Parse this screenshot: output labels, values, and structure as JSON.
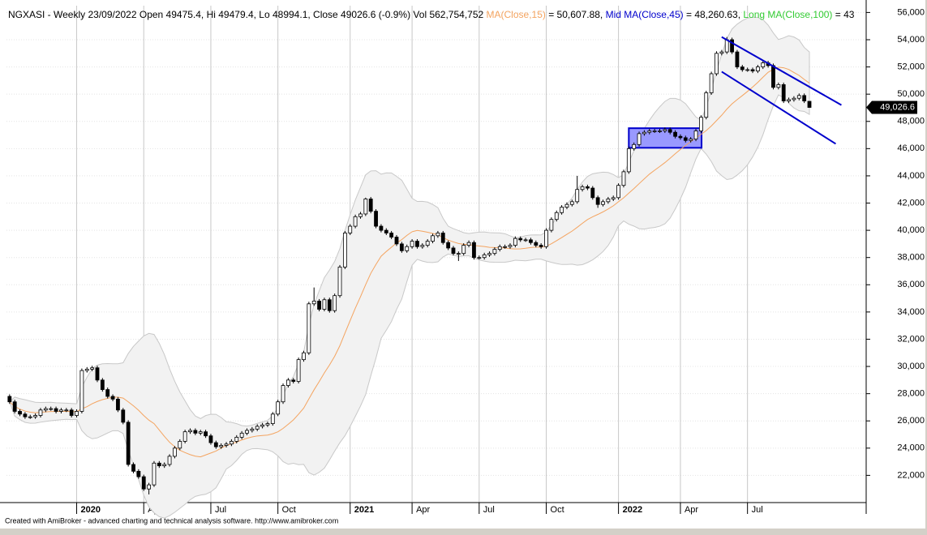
{
  "chart_data": {
    "type": "candlestick",
    "header": [
      {
        "text": "NGXASI - Weekly 23/09/2022 Open 49475.4, Hi 49479.4, Lo 48994.1, Close 49026.6 (-0.9%) Vol 562,754,752 ",
        "color": "#000000"
      },
      {
        "text": "MA(Close,15)",
        "color": "#f4a460"
      },
      {
        "text": " = 50,607.88, ",
        "color": "#000000"
      },
      {
        "text": "Mid MA(Close,45)",
        "color": "#0000cc"
      },
      {
        "text": " = 48,260.63, ",
        "color": "#000000"
      },
      {
        "text": "Long MA(Close,100)",
        "color": "#33cc33"
      },
      {
        "text": " = 43",
        "color": "#000000"
      }
    ],
    "footer": "Created with AmiBroker - advanced charting and technical analysis software. http://www.amibroker.com",
    "last_label": "49,026.6",
    "ma": {
      "period": 15,
      "color": "#f4a460",
      "band_width": 2,
      "band_fill": "#f2f2f2",
      "band_stroke": "#c8c8c8"
    },
    "up_color": "#ffffff",
    "down_color": "#000000",
    "grid": true,
    "xlim": [
      -0.6,
      166
    ],
    "xticks": [
      {
        "value": 13,
        "label": "2020"
      },
      {
        "value": 26,
        "label": "Apr"
      },
      {
        "value": 39,
        "label": "Jul"
      },
      {
        "value": 52,
        "label": "Oct"
      },
      {
        "value": 66,
        "label": "2021"
      },
      {
        "value": 78,
        "label": "Apr"
      },
      {
        "value": 91,
        "label": "Jul"
      },
      {
        "value": 104,
        "label": "Oct"
      },
      {
        "value": 118,
        "label": "2022"
      },
      {
        "value": 130,
        "label": "Apr"
      },
      {
        "value": 143,
        "label": "Jul"
      }
    ],
    "ylim": [
      20000,
      56500
    ],
    "yticks": [
      {
        "value": 22000,
        "label": "22,000"
      },
      {
        "value": 24000,
        "label": "24,000"
      },
      {
        "value": 26000,
        "label": "26,000"
      },
      {
        "value": 28000,
        "label": "28,000"
      },
      {
        "value": 30000,
        "label": "30,000"
      },
      {
        "value": 32000,
        "label": "32,000"
      },
      {
        "value": 34000,
        "label": "34,000"
      },
      {
        "value": 36000,
        "label": "36,000"
      },
      {
        "value": 38000,
        "label": "38,000"
      },
      {
        "value": 40000,
        "label": "40,000"
      },
      {
        "value": 42000,
        "label": "42,000"
      },
      {
        "value": 44000,
        "label": "44,000"
      },
      {
        "value": 46000,
        "label": "46,000"
      },
      {
        "value": 48000,
        "label": "48,000"
      },
      {
        "value": 50000,
        "label": "50,000"
      },
      {
        "value": 52000,
        "label": "52,000"
      },
      {
        "value": 54000,
        "label": "54,000"
      },
      {
        "value": 56000,
        "label": "56,000"
      }
    ],
    "channels": [
      {
        "x": [
          138,
          161.2
        ],
        "y": [
          54200,
          49200
        ],
        "color": "#0000cc"
      },
      {
        "x": [
          138,
          160.1
        ],
        "y": [
          51650,
          46350
        ],
        "color": "#0000cc"
      }
    ],
    "box": {
      "x": [
        120,
        134.1
      ],
      "y": [
        46060,
        47500
      ],
      "fill": "#9999ff",
      "stroke": "#0000cc"
    },
    "open": [
      27800,
      27400,
      26700,
      26500,
      26300,
      26300,
      26400,
      26800,
      26900,
      26900,
      26700,
      26800,
      26800,
      26400,
      26700,
      29700,
      29800,
      29900,
      29000,
      28300,
      27800,
      27600,
      26800,
      25900,
      22800,
      22300,
      21900,
      21000,
      21300,
      22900,
      22700,
      22800,
      23400,
      24000,
      24500,
      25200,
      25300,
      25100,
      25200,
      24900,
      24400,
      24100,
      24200,
      24300,
      24500,
      24800,
      25100,
      25300,
      25400,
      25600,
      25700,
      25800,
      26500,
      27400,
      28600,
      29000,
      28900,
      30500,
      31000,
      34600,
      34800,
      34200,
      34900,
      34100,
      35200,
      37300,
      39800,
      40300,
      41000,
      41200,
      42300,
      41400,
      40300,
      40000,
      39800,
      39500,
      39000,
      38500,
      38800,
      39200,
      38800,
      38900,
      39200,
      39600,
      39800,
      39100,
      38700,
      38300,
      38300,
      38900,
      39100,
      38000,
      38000,
      38200,
      38300,
      38600,
      38800,
      38800,
      38900,
      39400,
      39300,
      39300,
      39100,
      38900,
      38800,
      40000,
      40800,
      41300,
      41700,
      41900,
      42100,
      43000,
      43200,
      43100,
      42400,
      41900,
      42100,
      42300,
      42400,
      43300,
      44300,
      46000,
      46300,
      47100,
      47200,
      47300,
      47300,
      47300,
      47400,
      47200,
      46900,
      46800,
      46600,
      46700,
      47300,
      48300,
      50100,
      51500,
      53000,
      53100,
      54000,
      53100,
      52000,
      51800,
      51800,
      51700,
      52000,
      52300,
      52100,
      50500,
      50700,
      49500,
      49600,
      49700,
      49900,
      49475.4
    ],
    "high": [
      27950,
      27550,
      26850,
      26650,
      26450,
      26550,
      26950,
      27050,
      27050,
      27050,
      26950,
      26950,
      26950,
      26850,
      29850,
      29950,
      30050,
      30050,
      29150,
      28450,
      27950,
      27750,
      26950,
      26050,
      22950,
      22450,
      22050,
      21450,
      23050,
      23050,
      22950,
      23550,
      24150,
      24650,
      25350,
      25450,
      25450,
      25350,
      25350,
      25050,
      24550,
      24350,
      24450,
      24650,
      24950,
      25250,
      25450,
      25550,
      25750,
      25850,
      25950,
      26650,
      27550,
      28750,
      29150,
      29150,
      30650,
      31150,
      34750,
      35800,
      34950,
      35050,
      35050,
      35350,
      37450,
      39950,
      40450,
      41150,
      41350,
      42400,
      42450,
      41550,
      40450,
      40150,
      39950,
      39650,
      39150,
      38950,
      39350,
      39350,
      39050,
      39350,
      39750,
      39950,
      39950,
      39250,
      38850,
      38450,
      39050,
      39250,
      39250,
      38150,
      38350,
      38450,
      38750,
      38950,
      38950,
      39050,
      39550,
      39550,
      39450,
      39450,
      39250,
      39050,
      40150,
      40950,
      41450,
      41850,
      42050,
      42250,
      44000,
      43350,
      43350,
      43250,
      42550,
      42250,
      42450,
      42550,
      43450,
      44450,
      46150,
      46450,
      47250,
      47350,
      47450,
      47450,
      47450,
      47550,
      47550,
      47350,
      47050,
      46950,
      46850,
      47450,
      48450,
      50250,
      51650,
      53150,
      53250,
      54200,
      54150,
      53250,
      52150,
      51950,
      51950,
      52150,
      52450,
      52450,
      52250,
      50850,
      50850,
      49750,
      49850,
      50050,
      50050,
      49479.4
    ],
    "low": [
      27250,
      26550,
      26350,
      26150,
      26150,
      26150,
      26250,
      26650,
      26750,
      26550,
      26550,
      26650,
      26250,
      26250,
      26550,
      29550,
      29650,
      28850,
      28150,
      27650,
      27450,
      26650,
      25750,
      22650,
      22150,
      21750,
      20850,
      20600,
      21150,
      22550,
      22550,
      22650,
      23250,
      23850,
      24350,
      25050,
      24950,
      24950,
      24750,
      24250,
      23950,
      23950,
      24050,
      24150,
      24350,
      24650,
      24950,
      25150,
      25250,
      25450,
      25550,
      25650,
      26350,
      27250,
      28450,
      28750,
      28750,
      30350,
      30850,
      34450,
      34050,
      34050,
      33950,
      33950,
      35050,
      37150,
      39650,
      40150,
      40850,
      41050,
      41250,
      40150,
      39850,
      39650,
      39350,
      38850,
      38350,
      38350,
      38650,
      38650,
      38650,
      38750,
      39050,
      39450,
      38950,
      38550,
      38150,
      37750,
      38150,
      38750,
      37850,
      37850,
      37850,
      38050,
      38150,
      38450,
      38650,
      38650,
      38750,
      39150,
      39150,
      38950,
      38750,
      38650,
      38650,
      39850,
      40650,
      41150,
      41550,
      41750,
      41950,
      42850,
      42950,
      42250,
      41650,
      41750,
      41950,
      42150,
      42250,
      43150,
      44150,
      45850,
      46150,
      46950,
      47050,
      47150,
      47150,
      47150,
      47050,
      46750,
      46650,
      46450,
      46450,
      46550,
      47150,
      48150,
      49950,
      51350,
      52850,
      52950,
      52950,
      51850,
      51650,
      51650,
      51550,
      51550,
      51850,
      51950,
      50350,
      50350,
      49350,
      49350,
      49450,
      49550,
      49350,
      48994.1
    ],
    "close": [
      27400,
      26700,
      26500,
      26300,
      26300,
      26400,
      26800,
      26900,
      26900,
      26700,
      26800,
      26800,
      26400,
      26700,
      29700,
      29800,
      29900,
      29000,
      28300,
      27800,
      27600,
      26800,
      25900,
      22800,
      22300,
      21900,
      21000,
      21300,
      22900,
      22700,
      22800,
      23400,
      24000,
      24500,
      25200,
      25300,
      25100,
      25200,
      24900,
      24400,
      24100,
      24200,
      24300,
      24500,
      24800,
      25100,
      25300,
      25400,
      25600,
      25700,
      25800,
      26500,
      27400,
      28600,
      29000,
      28900,
      30500,
      31000,
      34600,
      34800,
      34200,
      34900,
      34100,
      35200,
      37300,
      39800,
      40300,
      41000,
      41200,
      42300,
      41400,
      40300,
      40000,
      39800,
      39500,
      39000,
      38500,
      38800,
      39200,
      38800,
      38900,
      39200,
      39600,
      39800,
      39100,
      38700,
      38300,
      38300,
      38900,
      39100,
      38000,
      38000,
      38200,
      38300,
      38600,
      38800,
      38800,
      38900,
      39400,
      39300,
      39300,
      39100,
      38900,
      38800,
      40000,
      40800,
      41300,
      41700,
      41900,
      42100,
      43000,
      43200,
      43100,
      42400,
      41900,
      42100,
      42300,
      42400,
      43300,
      44300,
      46000,
      46300,
      47100,
      47200,
      47300,
      47300,
      47300,
      47400,
      47200,
      46900,
      46800,
      46600,
      46700,
      47300,
      48300,
      50100,
      51500,
      53000,
      53100,
      54000,
      53100,
      52000,
      51800,
      51800,
      51700,
      52000,
      52300,
      52100,
      50500,
      50700,
      49500,
      49600,
      49700,
      49900,
      49500,
      49026.6
    ]
  }
}
